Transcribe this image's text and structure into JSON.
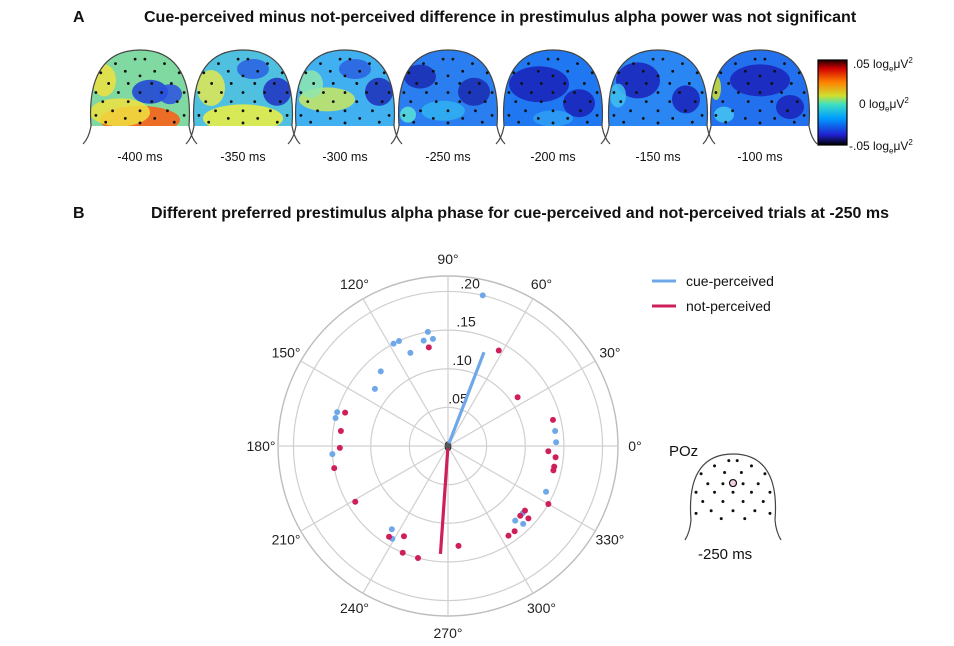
{
  "panel_a": {
    "letter": "A",
    "title": "Cue-perceived minus not-perceived difference in prestimulus alpha power was not significant",
    "topomaps": [
      {
        "label": "-400 ms"
      },
      {
        "label": "-350 ms"
      },
      {
        "label": "-300 ms"
      },
      {
        "label": "-250 ms"
      },
      {
        "label": "-200 ms"
      },
      {
        "label": "-150 ms"
      },
      {
        "label": "-100 ms"
      }
    ],
    "colorbar": {
      "top_label": ".05 log",
      "mid_label": "0 log",
      "bottom_label": "-.05 log",
      "unit_sub": "e",
      "unit": "μV",
      "unit_sup": "2",
      "colors": [
        "#000000",
        "#2020d0",
        "#00a0ff",
        "#40e0c0",
        "#d0e030",
        "#ff8000",
        "#d00000",
        "#200000"
      ]
    }
  },
  "panel_b": {
    "letter": "B",
    "title": "Different preferred prestimulus alpha phase for cue-perceived and not-perceived trials at -250 ms"
  },
  "chart_data": {
    "type": "scatter",
    "coordinate_system": "polar",
    "angle_unit": "degrees",
    "angle_ticks": [
      "0°",
      "30°",
      "60°",
      "90°",
      "120°",
      "150°",
      "180°",
      "210°",
      "240°",
      "270°",
      "300°",
      "330°"
    ],
    "radial_ticks": [
      "0",
      ".05",
      ".10",
      ".15",
      ".20"
    ],
    "rlim": [
      0,
      0.22
    ],
    "grid": true,
    "legend_position": "top-right",
    "series": [
      {
        "name": "cue-perceived",
        "color": "#6fa8e8",
        "mean_vector": {
          "angle": 69,
          "length": 0.13
        },
        "points": [
          {
            "angle": 77,
            "r": 0.2
          },
          {
            "angle": 98,
            "r": 0.14
          },
          {
            "angle": 100,
            "r": 0.15
          },
          {
            "angle": 103,
            "r": 0.14
          },
          {
            "angle": 112,
            "r": 0.13
          },
          {
            "angle": 115,
            "r": 0.15
          },
          {
            "angle": 118,
            "r": 0.15
          },
          {
            "angle": 132,
            "r": 0.13
          },
          {
            "angle": 142,
            "r": 0.12
          },
          {
            "angle": 163,
            "r": 0.15
          },
          {
            "angle": 166,
            "r": 0.15
          },
          {
            "angle": 184,
            "r": 0.15
          },
          {
            "angle": 239,
            "r": 0.14
          },
          {
            "angle": 236,
            "r": 0.13
          },
          {
            "angle": 312,
            "r": 0.13
          },
          {
            "angle": 318,
            "r": 0.13
          },
          {
            "angle": 314,
            "r": 0.14
          },
          {
            "angle": 335,
            "r": 0.14
          },
          {
            "angle": 8,
            "r": 0.14
          },
          {
            "angle": 2,
            "r": 0.14
          }
        ]
      },
      {
        "name": "not-perceived",
        "color": "#cf1f5b",
        "mean_vector": {
          "angle": 266,
          "length": 0.14
        },
        "points": [
          {
            "angle": 101,
            "r": 0.13
          },
          {
            "angle": 62,
            "r": 0.14
          },
          {
            "angle": 35,
            "r": 0.11
          },
          {
            "angle": 14,
            "r": 0.14
          },
          {
            "angle": -3,
            "r": 0.13
          },
          {
            "angle": -6,
            "r": 0.14
          },
          {
            "angle": -11,
            "r": 0.14
          },
          {
            "angle": -13,
            "r": 0.14
          },
          {
            "angle": 162,
            "r": 0.14
          },
          {
            "angle": 172,
            "r": 0.14
          },
          {
            "angle": 181,
            "r": 0.14
          },
          {
            "angle": 191,
            "r": 0.15
          },
          {
            "angle": 211,
            "r": 0.14
          },
          {
            "angle": 237,
            "r": 0.14
          },
          {
            "angle": 244,
            "r": 0.13
          },
          {
            "angle": 247,
            "r": 0.15
          },
          {
            "angle": 255,
            "r": 0.15
          },
          {
            "angle": 276,
            "r": 0.13
          },
          {
            "angle": 304,
            "r": 0.14
          },
          {
            "angle": 308,
            "r": 0.14
          },
          {
            "angle": 316,
            "r": 0.13
          },
          {
            "angle": 318,
            "r": 0.14
          },
          {
            "angle": 320,
            "r": 0.13
          },
          {
            "angle": 330,
            "r": 0.15
          }
        ]
      }
    ]
  },
  "inset": {
    "electrode": "POz",
    "time_label": "-250 ms"
  }
}
